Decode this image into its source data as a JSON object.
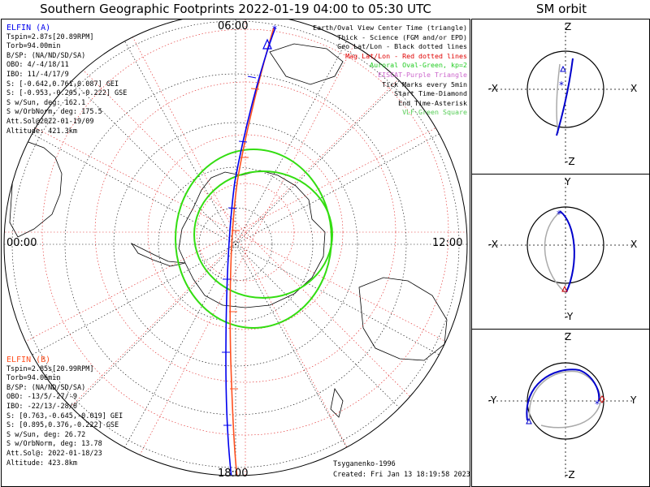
{
  "title": "Southern Geographic Footprints 2022-01-19 04:00 to 05:30 UTC",
  "sm_title": "SM orbit",
  "mlt_labels": {
    "top": "06:00",
    "left": "00:00",
    "right": "12:00",
    "bottom": "18:00"
  },
  "elfin_a": {
    "header": "ELFIN (A)",
    "lines": [
      "Tspin=2.87s[20.89RPM]",
      "Torb=94.00min",
      "B/SP: (NA/ND/SD/SA)",
      "OBO: 4/-4/18/11",
      "IBO: 11/-4/17/9",
      "S: [-0.642,0.761,0.087] GEI",
      "S: [-0.953,-0.205,-0.222] GSE",
      "S w/Sun, deg: 162.1",
      "S w/OrbNorm, deg: 175.5",
      "Att.Sol@2022-01-19/09",
      "Altitude: 421.3km"
    ]
  },
  "elfin_b": {
    "header": "ELFIN (B)",
    "lines": [
      "Tspin=2.85s[20.99RPM]",
      "Torb=94.06min",
      "B/SP: (NA/ND/SD/SA)",
      "OBO: -13/5/-27/-9",
      "IBO: -22/13/-28/0",
      "S: [0.763,-0.645,-0.019] GEI",
      "S: [0.895,0.376,-0.222] GSE",
      "S w/Sun, deg: 26.72",
      "S w/OrbNorm, deg: 13.78",
      "Att.Sol@: 2022-01-18/23",
      "Altitude: 423.8km"
    ]
  },
  "legend": [
    {
      "text": "Earth/Oval View Center Time (triangle)",
      "color": "#000000"
    },
    {
      "text": "Thick - Science (FGM and/or EPD)",
      "color": "#000000"
    },
    {
      "text": "Geo Lat/Lon - Black dotted lines",
      "color": "#000000"
    },
    {
      "text": "Mag Lat/Lon - Red dotted lines",
      "color": "#e00000"
    },
    {
      "text": "Auroral Oval-Green, kp=2",
      "color": "#22cc22"
    },
    {
      "text": "EISCAT-Purple Triangle",
      "color": "#cc66cc"
    },
    {
      "text": "Tick Marks every 5min",
      "color": "#000000"
    },
    {
      "text": "Start Time-Diamond",
      "color": "#000000"
    },
    {
      "text": "End Time-Asterisk",
      "color": "#000000"
    },
    {
      "text": "VLF-Green Square",
      "color": "#55cc55"
    }
  ],
  "footer": {
    "model": "Tsyganenko-1996",
    "created": "Created: Fri Jan 13 18:19:58 2023"
  },
  "sm_panels": [
    {
      "top": "Z",
      "bottom": "-Z",
      "left": "-X",
      "right": "X"
    },
    {
      "top": "Y",
      "bottom": "-Y",
      "left": "-X",
      "right": "X"
    },
    {
      "top": "Z",
      "bottom": "-Z",
      "left": "-Y",
      "right": "Y"
    }
  ],
  "colors": {
    "elfin_a": "#0000ee",
    "elfin_b": "#ff5020",
    "oval": "#33dd11",
    "grid_mag": "#e02020"
  }
}
